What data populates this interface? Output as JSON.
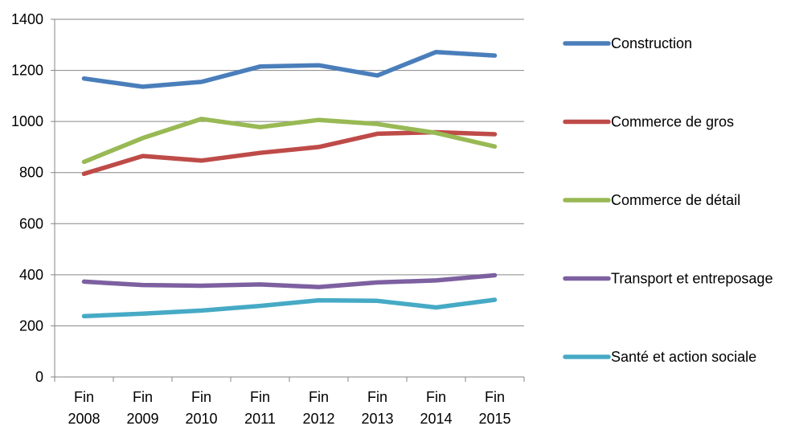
{
  "chart_data": {
    "type": "line",
    "title": "",
    "xlabel": "",
    "ylabel": "",
    "ylim": [
      0,
      1400
    ],
    "yticks": [
      0,
      200,
      400,
      600,
      800,
      1000,
      1200,
      1400
    ],
    "grid": "horizontal",
    "legend_position": "right",
    "categories": [
      [
        "Fin",
        "2008"
      ],
      [
        "Fin",
        "2009"
      ],
      [
        "Fin",
        "2010"
      ],
      [
        "Fin",
        "2011"
      ],
      [
        "Fin",
        "2012"
      ],
      [
        "Fin",
        "2013"
      ],
      [
        "Fin",
        "2014"
      ],
      [
        "Fin",
        "2015"
      ]
    ],
    "series": [
      {
        "name": "Construction",
        "color": "#4a7ebb",
        "values": [
          1168,
          1136,
          1155,
          1215,
          1220,
          1180,
          1272,
          1258
        ]
      },
      {
        "name": "Commerce de gros",
        "color": "#be4b48",
        "values": [
          795,
          865,
          847,
          877,
          900,
          952,
          958,
          950
        ]
      },
      {
        "name": "Commerce de détail",
        "color": "#98b954",
        "values": [
          842,
          935,
          1010,
          978,
          1006,
          990,
          955,
          902
        ]
      },
      {
        "name": "Transport et entreposage",
        "color": "#7d60a0",
        "values": [
          373,
          360,
          357,
          362,
          352,
          370,
          378,
          398
        ]
      },
      {
        "name": "Santé et action sociale",
        "color": "#46aac5",
        "values": [
          238,
          248,
          260,
          278,
          300,
          298,
          272,
          302
        ]
      }
    ]
  }
}
